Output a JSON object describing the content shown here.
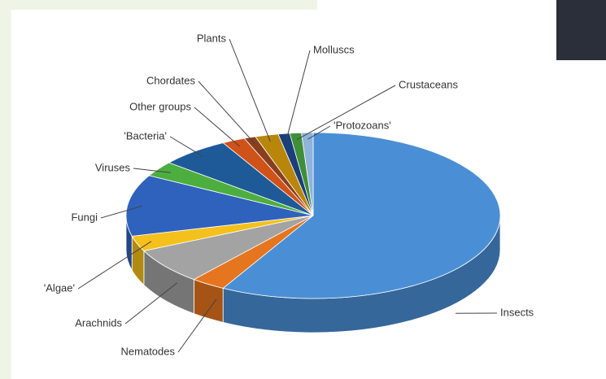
{
  "chart_data": {
    "type": "pie3d",
    "categories": [
      "Insects",
      "Nematodes",
      "Arachnids",
      "'Algae'",
      "Fungi",
      "Viruses",
      "'Bacteria'",
      "Other groups",
      "Chordates",
      "Plants",
      "Molluscs",
      "Crustaceans",
      "'Protozoans'"
    ],
    "values": [
      58,
      3,
      7,
      3,
      12,
      3,
      6,
      2,
      1,
      2,
      1,
      1,
      1
    ],
    "colors": [
      "#4a8fd6",
      "#e5751f",
      "#a3a3a3",
      "#f4c01b",
      "#2f62bd",
      "#4cae3e",
      "#1f5a98",
      "#cf5219",
      "#8a3f1c",
      "#b8860b",
      "#1b3f7a",
      "#3f8f3a",
      "#8fb3d9"
    ]
  }
}
